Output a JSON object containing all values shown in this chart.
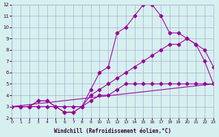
{
  "title": "",
  "xlabel": "Windchill (Refroidissement éolien,°C)",
  "ylabel": "",
  "background_color": "#d6f0f0",
  "line_color": "#990099",
  "grid_color": "#aaaacc",
  "xlim": [
    0,
    23
  ],
  "ylim": [
    2,
    12
  ],
  "xticks": [
    0,
    1,
    2,
    3,
    4,
    5,
    6,
    7,
    8,
    9,
    10,
    11,
    12,
    13,
    14,
    15,
    16,
    17,
    18,
    19,
    20,
    21,
    22,
    23
  ],
  "yticks": [
    2,
    3,
    4,
    5,
    6,
    7,
    8,
    9,
    10,
    11,
    12
  ],
  "curve1_x": [
    0,
    1,
    2,
    3,
    4,
    5,
    6,
    7,
    8,
    9,
    10,
    11,
    12,
    13,
    14,
    15,
    16,
    17,
    18,
    19,
    20,
    21,
    22,
    23
  ],
  "curve1_y": [
    3,
    3,
    3,
    3.5,
    3.5,
    3,
    2.5,
    2.5,
    3,
    4,
    4.5,
    5,
    5.5,
    6,
    6.5,
    7,
    7.5,
    8,
    8.5,
    8.5,
    9,
    8.5,
    8,
    6.5
  ],
  "curve2_x": [
    0,
    1,
    2,
    3,
    4,
    5,
    6,
    7,
    8,
    9,
    10,
    11,
    12,
    13,
    14,
    15,
    16,
    17,
    18,
    19,
    20,
    21,
    22,
    23
  ],
  "curve2_y": [
    3,
    3,
    3,
    3.5,
    3.5,
    3,
    2.5,
    2.5,
    3,
    4.5,
    6,
    6.5,
    9.5,
    10,
    11,
    12,
    12,
    11,
    9.5,
    9.5,
    9,
    8.5,
    7,
    5
  ],
  "curve3_x": [
    0,
    1,
    2,
    3,
    4,
    5,
    6,
    7,
    8,
    9,
    10,
    11,
    12,
    13,
    14,
    15,
    16,
    17,
    18,
    19,
    20,
    21,
    22,
    23
  ],
  "curve3_y": [
    3,
    3,
    3,
    3,
    3,
    3,
    3,
    3,
    3,
    3.5,
    4,
    4,
    4.5,
    5,
    5,
    5,
    5,
    5,
    5,
    5,
    5,
    5,
    5,
    5
  ],
  "curve4_x": [
    0,
    23
  ],
  "curve4_y": [
    3,
    5
  ]
}
